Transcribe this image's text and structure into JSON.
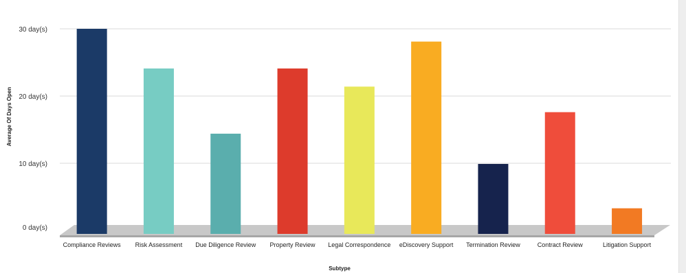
{
  "chart_data": {
    "type": "bar",
    "title": "",
    "xlabel": "Subtype",
    "ylabel": "Average Of Days Open",
    "ylim": [
      0,
      30
    ],
    "yticks": [
      {
        "value": 0,
        "label": "0 day(s)"
      },
      {
        "value": 10,
        "label": "10 day(s)"
      },
      {
        "value": 20,
        "label": "20 day(s)"
      },
      {
        "value": 30,
        "label": "30 day(s)"
      }
    ],
    "grid": true,
    "categories": [
      "Compliance Reviews",
      "Risk Assessment",
      "Due Diligence Review",
      "Property Review",
      "Legal Correspondence",
      "eDiscovery Support",
      "Termination Review",
      "Contract Review",
      "Litigation Support"
    ],
    "values": [
      30.0,
      24.1,
      14.4,
      24.1,
      21.4,
      28.1,
      9.9,
      17.6,
      3.3
    ],
    "colors": [
      "#1b3a67",
      "#77ccc3",
      "#5aaead",
      "#dd3b2c",
      "#e8e85a",
      "#f9ac22",
      "#16234d",
      "#ef4d3b",
      "#f27a23"
    ]
  }
}
